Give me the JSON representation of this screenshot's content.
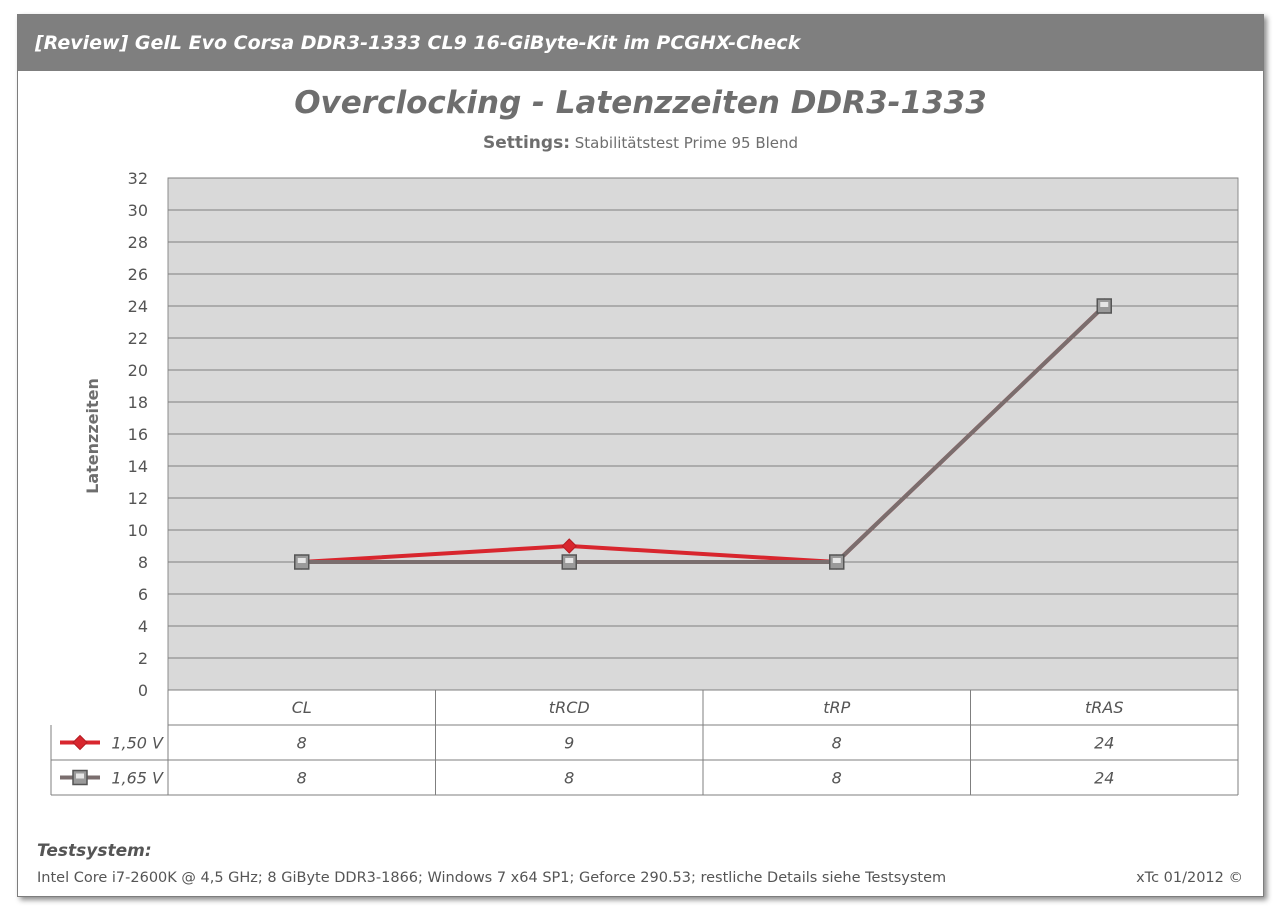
{
  "header": {
    "title": "[Review] GelL Evo Corsa  DDR3-1333 CL9 16-GiByte-Kit im PCGHX-Check"
  },
  "chart_data": {
    "type": "line",
    "title": "Overclocking - Latenzzeiten DDR3-1333",
    "subtitle_label": "Settings:",
    "subtitle_text": "Stabilitätstest Prime 95 Blend",
    "xlabel": "",
    "ylabel": "Latenzzeiten",
    "ylim": [
      0,
      32
    ],
    "ytick_step": 2,
    "grid": true,
    "categories": [
      "CL",
      "tRCD",
      "tRP",
      "tRAS"
    ],
    "series": [
      {
        "name": "1,50 V",
        "values": [
          8,
          9,
          8,
          24
        ],
        "color": "#d8262e",
        "marker": "diamond"
      },
      {
        "name": "1,65 V",
        "values": [
          8,
          8,
          8,
          24
        ],
        "color": "#7a6e6e",
        "marker": "square"
      }
    ],
    "data_table": true
  },
  "footer": {
    "heading": "Testsystem:",
    "details": "Intel Core i7-2600K @ 4,5 GHz; 8 GiByte DDR3-1866; Windows 7 x64 SP1; Geforce 290.53; restliche Details siehe Testsystem",
    "copyright": "xTc 01/2012 ©"
  }
}
